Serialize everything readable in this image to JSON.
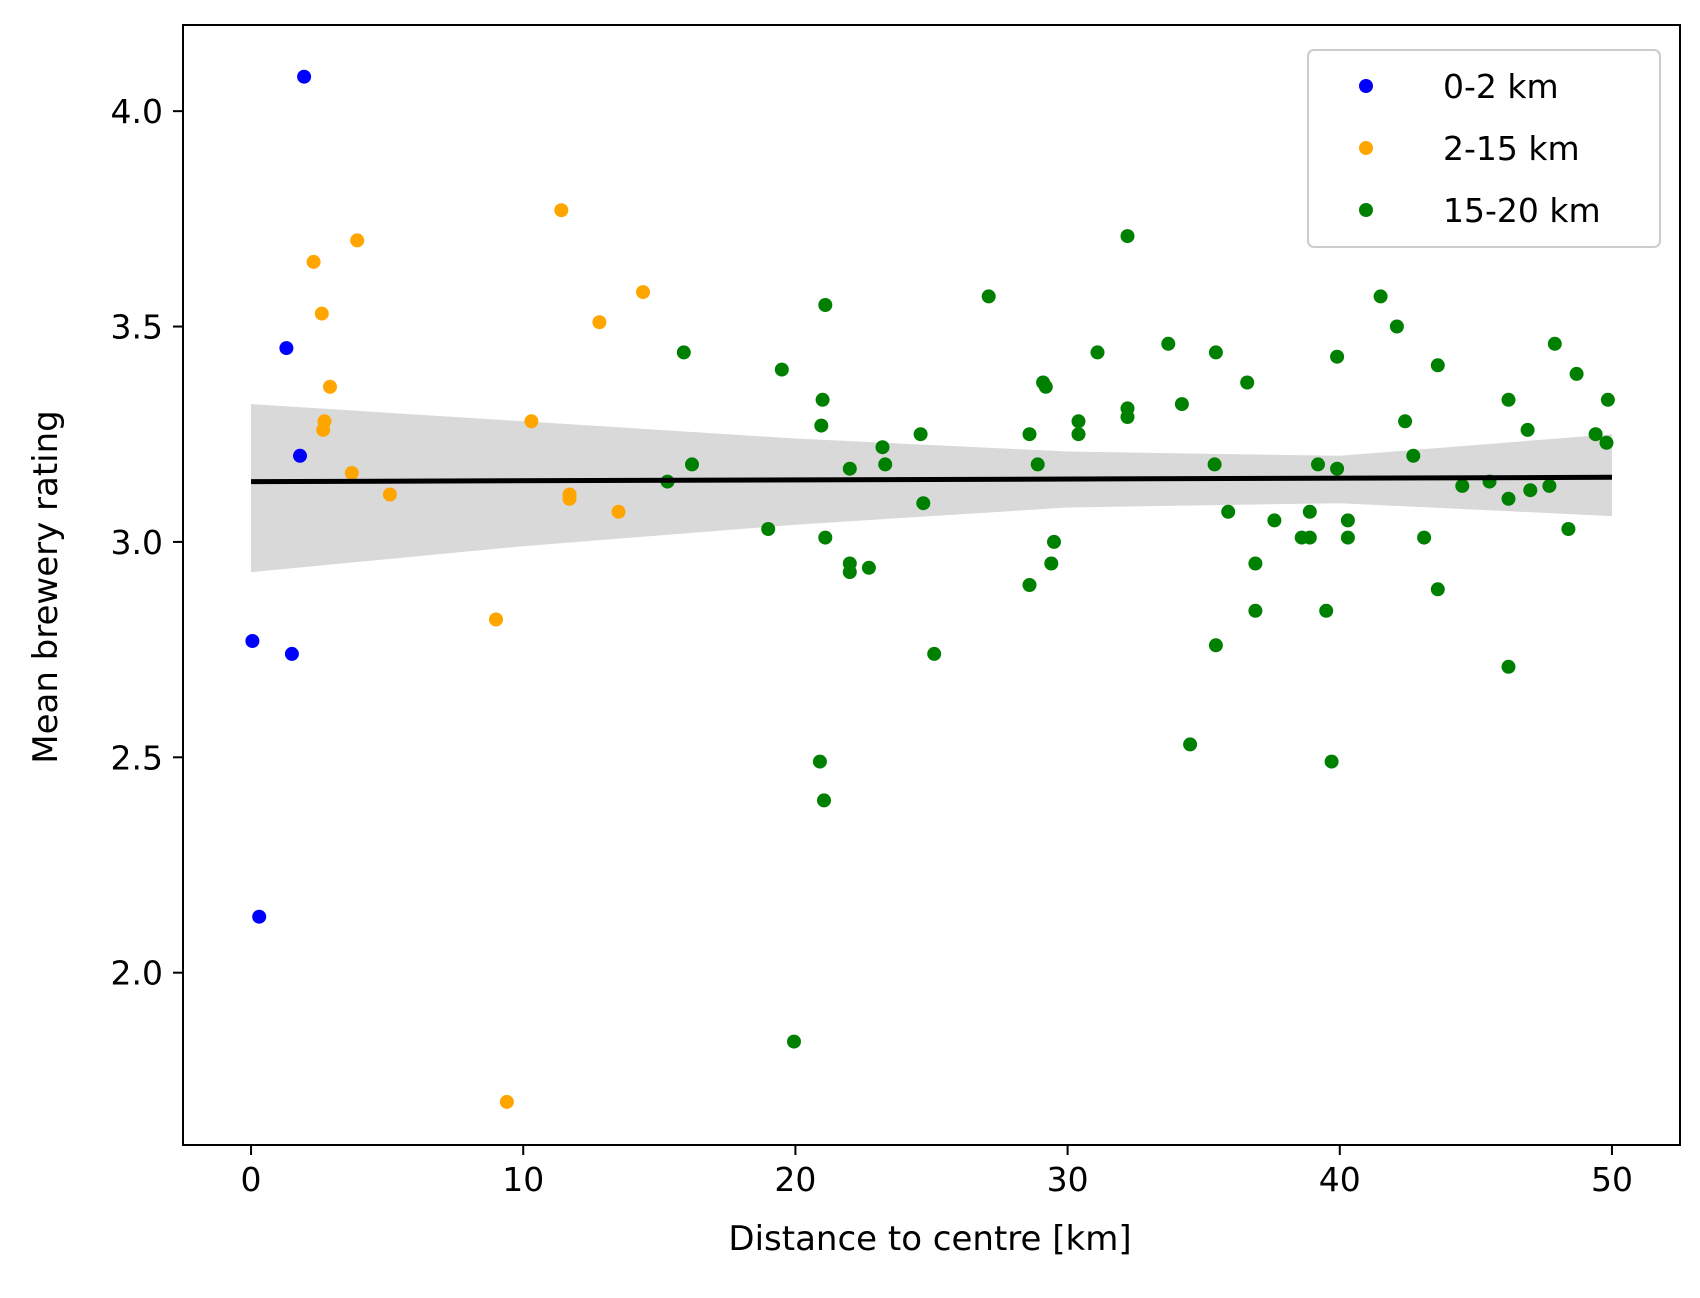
{
  "chart_data": {
    "type": "scatter",
    "title": "",
    "xlabel": "Distance to centre [km]",
    "ylabel": "Mean brewery rating",
    "xlim": [
      -2.5,
      52.5
    ],
    "ylim": [
      1.6,
      4.2
    ],
    "x_ticks": [
      0,
      10,
      20,
      30,
      40,
      50
    ],
    "y_ticks": [
      2.0,
      2.5,
      3.0,
      3.5,
      4.0
    ],
    "x_tick_labels": [
      "0",
      "10",
      "20",
      "30",
      "40",
      "50"
    ],
    "y_tick_labels": [
      "2.0",
      "2.5",
      "3.0",
      "3.5",
      "4.0"
    ],
    "grid": false,
    "legend_position": "top-right",
    "series": [
      {
        "name": "0-2 km",
        "color": "#0000ff",
        "points": [
          [
            0.05,
            2.77
          ],
          [
            0.3,
            2.13
          ],
          [
            1.3,
            3.45
          ],
          [
            1.5,
            2.74
          ],
          [
            1.8,
            3.2
          ],
          [
            1.95,
            4.08
          ]
        ]
      },
      {
        "name": "2-15 km",
        "color": "#ffa500",
        "points": [
          [
            2.3,
            3.65
          ],
          [
            2.6,
            3.53
          ],
          [
            2.65,
            3.26
          ],
          [
            2.7,
            3.28
          ],
          [
            2.9,
            3.36
          ],
          [
            3.7,
            3.16
          ],
          [
            3.9,
            3.7
          ],
          [
            5.1,
            3.11
          ],
          [
            9.0,
            2.82
          ],
          [
            9.4,
            1.7
          ],
          [
            10.3,
            3.28
          ],
          [
            11.4,
            3.77
          ],
          [
            11.7,
            3.1
          ],
          [
            11.7,
            3.11
          ],
          [
            12.8,
            3.51
          ],
          [
            13.5,
            3.07
          ],
          [
            14.4,
            3.58
          ]
        ]
      },
      {
        "name": "15-20 km",
        "color": "#008000",
        "points": [
          [
            15.3,
            3.14
          ],
          [
            15.9,
            3.44
          ],
          [
            16.2,
            3.18
          ],
          [
            19.0,
            3.03
          ],
          [
            19.5,
            3.4
          ],
          [
            19.95,
            1.84
          ],
          [
            20.9,
            2.49
          ],
          [
            20.95,
            3.27
          ],
          [
            21.0,
            3.33
          ],
          [
            21.05,
            2.4
          ],
          [
            21.1,
            3.55
          ],
          [
            21.1,
            3.01
          ],
          [
            22.0,
            2.95
          ],
          [
            22.0,
            2.93
          ],
          [
            22.0,
            3.17
          ],
          [
            22.7,
            2.94
          ],
          [
            23.2,
            3.22
          ],
          [
            23.3,
            3.18
          ],
          [
            24.6,
            3.25
          ],
          [
            24.7,
            3.09
          ],
          [
            25.1,
            2.74
          ],
          [
            27.1,
            3.57
          ],
          [
            28.6,
            2.9
          ],
          [
            28.6,
            3.25
          ],
          [
            28.9,
            3.18
          ],
          [
            29.1,
            3.37
          ],
          [
            29.2,
            3.36
          ],
          [
            29.4,
            2.95
          ],
          [
            29.5,
            3.0
          ],
          [
            30.4,
            3.28
          ],
          [
            30.4,
            3.25
          ],
          [
            31.1,
            3.44
          ],
          [
            32.2,
            3.71
          ],
          [
            32.2,
            3.29
          ],
          [
            32.2,
            3.31
          ],
          [
            33.7,
            3.46
          ],
          [
            34.2,
            3.32
          ],
          [
            34.5,
            2.53
          ],
          [
            35.4,
            3.18
          ],
          [
            35.45,
            3.44
          ],
          [
            35.45,
            2.76
          ],
          [
            35.9,
            3.07
          ],
          [
            36.6,
            3.37
          ],
          [
            36.9,
            2.84
          ],
          [
            36.9,
            2.95
          ],
          [
            37.6,
            3.05
          ],
          [
            38.6,
            3.01
          ],
          [
            38.9,
            3.01
          ],
          [
            38.9,
            3.07
          ],
          [
            39.2,
            3.18
          ],
          [
            39.5,
            2.84
          ],
          [
            39.7,
            2.49
          ],
          [
            39.9,
            3.43
          ],
          [
            39.9,
            3.17
          ],
          [
            40.3,
            3.05
          ],
          [
            40.3,
            3.01
          ],
          [
            41.5,
            3.57
          ],
          [
            42.1,
            3.5
          ],
          [
            42.4,
            3.28
          ],
          [
            42.7,
            3.2
          ],
          [
            43.1,
            3.01
          ],
          [
            43.6,
            3.41
          ],
          [
            43.6,
            2.89
          ],
          [
            44.5,
            3.13
          ],
          [
            45.5,
            3.14
          ],
          [
            46.2,
            3.33
          ],
          [
            46.2,
            3.1
          ],
          [
            46.2,
            2.71
          ],
          [
            46.9,
            3.26
          ],
          [
            47.0,
            3.12
          ],
          [
            47.7,
            3.13
          ],
          [
            47.9,
            3.46
          ],
          [
            48.4,
            3.03
          ],
          [
            48.7,
            3.39
          ],
          [
            49.4,
            3.25
          ],
          [
            49.8,
            3.23
          ],
          [
            49.85,
            3.33
          ]
        ]
      }
    ],
    "regression": {
      "color": "#000000",
      "line": [
        [
          0.0,
          3.14
        ],
        [
          50.0,
          3.15
        ]
      ],
      "ci_color": "#d9d9d9",
      "ci_lower": [
        [
          0,
          2.93
        ],
        [
          10,
          2.99
        ],
        [
          20,
          3.04
        ],
        [
          30,
          3.08
        ],
        [
          40,
          3.09
        ],
        [
          50,
          3.06
        ]
      ],
      "ci_upper": [
        [
          0,
          3.32
        ],
        [
          10,
          3.28
        ],
        [
          20,
          3.24
        ],
        [
          30,
          3.21
        ],
        [
          40,
          3.2
        ],
        [
          50,
          3.25
        ]
      ]
    }
  }
}
